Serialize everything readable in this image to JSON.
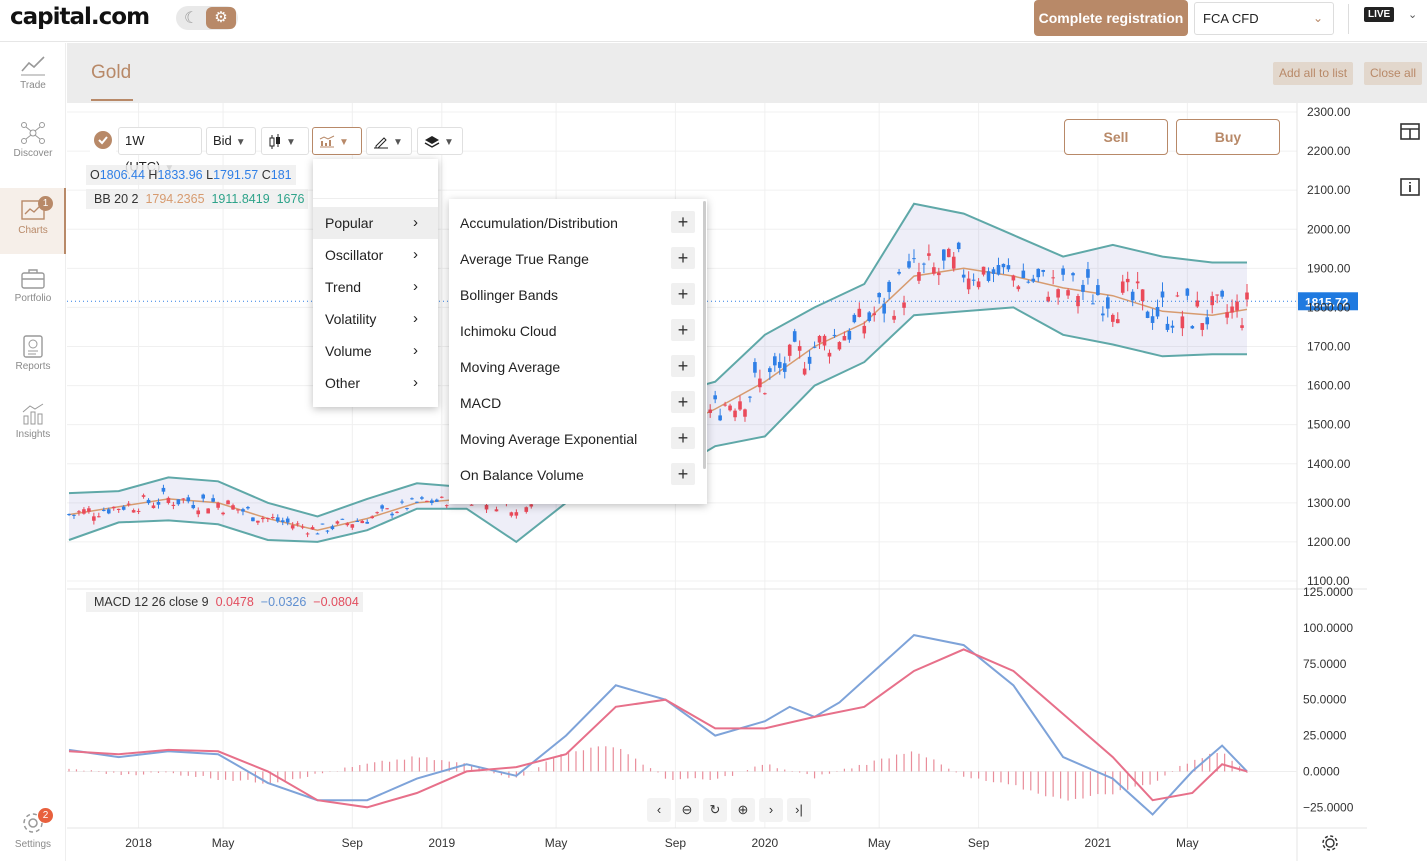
{
  "brand": {
    "name": "capital.com"
  },
  "topbar": {
    "complete_registration": "Complete registration",
    "regulator": "FCA CFD",
    "live_badge": "LIVE"
  },
  "sidebar": {
    "items": [
      {
        "label": "Trade",
        "icon": "trend-icon"
      },
      {
        "label": "Discover",
        "icon": "network-icon"
      },
      {
        "label": "Charts",
        "icon": "chart-icon",
        "badge": "1",
        "active": true
      },
      {
        "label": "Portfolio",
        "icon": "briefcase-icon"
      },
      {
        "label": "Reports",
        "icon": "report-icon"
      },
      {
        "label": "Insights",
        "icon": "insights-icon"
      }
    ],
    "settings": {
      "label": "Settings",
      "badge": "2"
    }
  },
  "header": {
    "title": "Gold",
    "add_all": "Add all to list",
    "close_all": "Close all"
  },
  "toolbar": {
    "timeframe": "1W (UTC)",
    "price_type": "Bid"
  },
  "trade": {
    "sell": "Sell",
    "buy": "Buy"
  },
  "ohlc": {
    "o_label": "O",
    "o": "1806.44",
    "h_label": "H",
    "h": "1833.96",
    "l_label": "L",
    "l": "1791.57",
    "c_label": "C",
    "c": "181"
  },
  "bb": {
    "label": "BB 20 2",
    "v1": "1794.2365",
    "v2": "1911.8419",
    "v3": "1676"
  },
  "macd": {
    "label": "MACD 12 26 close 9",
    "v1": "0.0478",
    "v2": "−0.0326",
    "v3": "−0.0804"
  },
  "indicator_menu": {
    "categories": [
      "Popular",
      "Oscillator",
      "Trend",
      "Volatility",
      "Volume",
      "Other"
    ],
    "selected": "Popular",
    "items": [
      "Accumulation/Distribution",
      "Average True Range",
      "Bollinger Bands",
      "Ichimoku Cloud",
      "Moving Average",
      "MACD",
      "Moving Average Exponential",
      "On Balance Volume"
    ]
  },
  "colors": {
    "accent": "#b88968",
    "up": "#2f7fe6",
    "down": "#ea4a5a",
    "bb_band": "#5fa8a8",
    "bb_mid": "#d79b6f",
    "macd_line": "#7ea3d9",
    "signal_line": "#e7708a"
  },
  "chart_data": [
    {
      "type": "candlestick",
      "title": "Gold",
      "timeframe": "1W",
      "x_tick_labels": [
        "2018",
        "May",
        "Sep",
        "2019",
        "May",
        "Sep",
        "2020",
        "May",
        "Sep",
        "2021",
        "May"
      ],
      "y_tick_labels": [
        "2300.00",
        "2200.00",
        "2100.00",
        "2000.00",
        "1900.00",
        "1800.00",
        "1700.00",
        "1600.00",
        "1500.00",
        "1400.00",
        "1300.00",
        "1200.00",
        "1100.00"
      ],
      "ylim": [
        1100,
        2300
      ],
      "last_price": "1815.72",
      "last_price_value": 1815.72,
      "bb_upper": [
        [
          0,
          1325
        ],
        [
          10,
          1330
        ],
        [
          20,
          1365
        ],
        [
          30,
          1355
        ],
        [
          40,
          1300
        ],
        [
          50,
          1265
        ],
        [
          60,
          1310
        ],
        [
          70,
          1350
        ],
        [
          80,
          1340
        ],
        [
          90,
          1345
        ],
        [
          100,
          1390
        ],
        [
          110,
          1515
        ],
        [
          120,
          1575
        ],
        [
          130,
          1610
        ],
        [
          140,
          1730
        ],
        [
          150,
          1800
        ],
        [
          160,
          1860
        ],
        [
          170,
          2065
        ],
        [
          180,
          2040
        ],
        [
          190,
          1985
        ],
        [
          200,
          1930
        ],
        [
          210,
          1960
        ],
        [
          220,
          1930
        ],
        [
          230,
          1915
        ],
        [
          237,
          1915
        ]
      ],
      "bb_lower": [
        [
          0,
          1205
        ],
        [
          10,
          1250
        ],
        [
          20,
          1255
        ],
        [
          30,
          1245
        ],
        [
          40,
          1205
        ],
        [
          50,
          1200
        ],
        [
          60,
          1230
        ],
        [
          70,
          1285
        ],
        [
          80,
          1285
        ],
        [
          90,
          1200
        ],
        [
          100,
          1300
        ],
        [
          110,
          1405
        ],
        [
          120,
          1370
        ],
        [
          130,
          1445
        ],
        [
          140,
          1470
        ],
        [
          150,
          1600
        ],
        [
          160,
          1660
        ],
        [
          170,
          1780
        ],
        [
          180,
          1790
        ],
        [
          190,
          1800
        ],
        [
          200,
          1730
        ],
        [
          210,
          1705
        ],
        [
          220,
          1675
        ],
        [
          230,
          1680
        ],
        [
          237,
          1680
        ]
      ],
      "bb_mid": [
        [
          0,
          1270
        ],
        [
          10,
          1290
        ],
        [
          20,
          1310
        ],
        [
          30,
          1300
        ],
        [
          40,
          1260
        ],
        [
          50,
          1230
        ],
        [
          60,
          1260
        ],
        [
          70,
          1300
        ],
        [
          80,
          1310
        ],
        [
          90,
          1305
        ],
        [
          100,
          1350
        ],
        [
          110,
          1440
        ],
        [
          120,
          1480
        ],
        [
          130,
          1540
        ],
        [
          140,
          1610
        ],
        [
          150,
          1700
        ],
        [
          160,
          1760
        ],
        [
          170,
          1880
        ],
        [
          180,
          1900
        ],
        [
          190,
          1880
        ],
        [
          200,
          1850
        ],
        [
          210,
          1830
        ],
        [
          220,
          1790
        ],
        [
          230,
          1780
        ],
        [
          237,
          1795
        ]
      ]
    },
    {
      "type": "macd",
      "series_labels": [
        "MACD 12 26 close 9"
      ],
      "y_tick_labels": [
        "125.0000",
        "100.0000",
        "75.0000",
        "50.0000",
        "25.0000",
        "0.0000",
        "−25.0000"
      ],
      "ylim": [
        -38,
        125
      ],
      "macd": [
        [
          0,
          15
        ],
        [
          10,
          10
        ],
        [
          20,
          14
        ],
        [
          30,
          12
        ],
        [
          40,
          -8
        ],
        [
          50,
          -20
        ],
        [
          60,
          -20
        ],
        [
          70,
          -5
        ],
        [
          80,
          5
        ],
        [
          90,
          -3
        ],
        [
          100,
          25
        ],
        [
          110,
          60
        ],
        [
          120,
          50
        ],
        [
          130,
          25
        ],
        [
          140,
          35
        ],
        [
          145,
          45
        ],
        [
          150,
          38
        ],
        [
          155,
          48
        ],
        [
          170,
          95
        ],
        [
          180,
          88
        ],
        [
          190,
          60
        ],
        [
          200,
          10
        ],
        [
          210,
          -5
        ],
        [
          218,
          -30
        ],
        [
          226,
          0
        ],
        [
          232,
          18
        ],
        [
          237,
          0
        ]
      ],
      "signal": [
        [
          0,
          14
        ],
        [
          10,
          12
        ],
        [
          20,
          15
        ],
        [
          30,
          14
        ],
        [
          40,
          0
        ],
        [
          50,
          -20
        ],
        [
          60,
          -25
        ],
        [
          70,
          -15
        ],
        [
          80,
          0
        ],
        [
          90,
          3
        ],
        [
          100,
          12
        ],
        [
          110,
          45
        ],
        [
          120,
          50
        ],
        [
          130,
          30
        ],
        [
          140,
          30
        ],
        [
          150,
          38
        ],
        [
          160,
          45
        ],
        [
          170,
          70
        ],
        [
          180,
          85
        ],
        [
          190,
          70
        ],
        [
          200,
          40
        ],
        [
          210,
          10
        ],
        [
          218,
          -20
        ],
        [
          226,
          -15
        ],
        [
          232,
          5
        ],
        [
          237,
          0
        ]
      ],
      "histogram": [
        [
          0,
          2
        ],
        [
          10,
          -2
        ],
        [
          20,
          -1
        ],
        [
          30,
          -5
        ],
        [
          40,
          -8
        ],
        [
          50,
          -2
        ],
        [
          60,
          5
        ],
        [
          70,
          10
        ],
        [
          80,
          5
        ],
        [
          90,
          -5
        ],
        [
          100,
          14
        ],
        [
          110,
          18
        ],
        [
          120,
          -5
        ],
        [
          130,
          -6
        ],
        [
          140,
          5
        ],
        [
          150,
          -4
        ],
        [
          160,
          5
        ],
        [
          170,
          15
        ],
        [
          180,
          -4
        ],
        [
          190,
          -10
        ],
        [
          200,
          -20
        ],
        [
          210,
          -15
        ],
        [
          218,
          -8
        ],
        [
          226,
          8
        ],
        [
          232,
          14
        ],
        [
          237,
          0
        ]
      ]
    }
  ]
}
